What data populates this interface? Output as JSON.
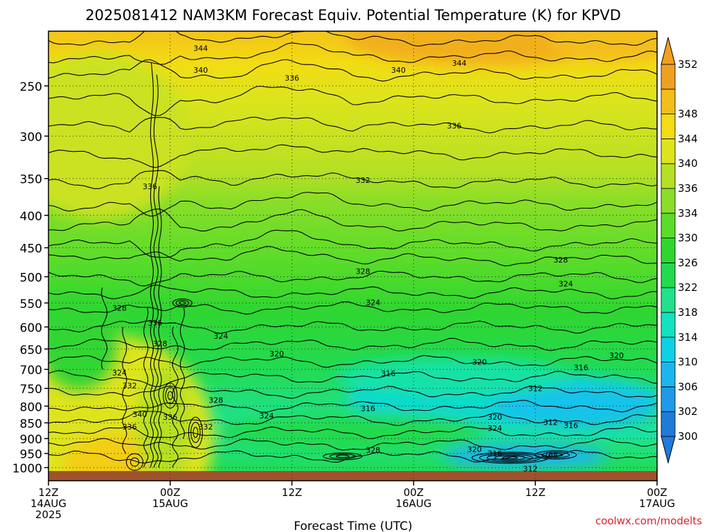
{
  "chart_data": {
    "type": "heatmap",
    "title": "2025081412 NAM3KM Forecast Equiv. Potential Temperature (K) for KPVD",
    "xlabel": "Forecast Time (UTC)",
    "ylabel": "",
    "x_ticks": [
      {
        "hour": 0,
        "lines": [
          "12Z",
          "14AUG",
          "2025"
        ]
      },
      {
        "hour": 12,
        "lines": [
          "00Z",
          "15AUG"
        ]
      },
      {
        "hour": 24,
        "lines": [
          "12Z"
        ]
      },
      {
        "hour": 36,
        "lines": [
          "00Z",
          "16AUG"
        ]
      },
      {
        "hour": 48,
        "lines": [
          "12Z"
        ]
      },
      {
        "hour": 60,
        "lines": [
          "00Z",
          "17AUG"
        ]
      }
    ],
    "xlim": [
      0,
      60
    ],
    "y_ticks": [
      250,
      300,
      350,
      400,
      450,
      500,
      550,
      600,
      650,
      700,
      750,
      800,
      850,
      900,
      950,
      1000
    ],
    "ylim": [
      1020,
      200
    ],
    "y_scale": "log-pressure",
    "grid": true,
    "colorbar": {
      "levels": [
        300,
        302,
        306,
        310,
        314,
        318,
        322,
        326,
        330,
        334,
        336,
        340,
        344,
        348,
        352
      ],
      "colors": [
        "#1e7bd8",
        "#1e9ae8",
        "#1cb6ee",
        "#10d0e6",
        "#12e2c0",
        "#20e28c",
        "#22da50",
        "#30d630",
        "#5cdc2a",
        "#8ade28",
        "#b6e024",
        "#dee41c",
        "#f2dc14",
        "#f4be1a",
        "#f0a020"
      ],
      "labels": [
        "300",
        "302",
        "306",
        "310",
        "314",
        "318",
        "322",
        "326",
        "330",
        "334",
        "336",
        "340",
        "344",
        "348",
        "352"
      ]
    },
    "contour_labels": [
      {
        "text": "344",
        "hour": 15.0,
        "p": 218
      },
      {
        "text": "344",
        "hour": 40.5,
        "p": 230
      },
      {
        "text": "340",
        "hour": 15.0,
        "p": 236
      },
      {
        "text": "340",
        "hour": 34.5,
        "p": 236
      },
      {
        "text": "336",
        "hour": 24.0,
        "p": 243
      },
      {
        "text": "336",
        "hour": 40.0,
        "p": 289
      },
      {
        "text": "336",
        "hour": 10.0,
        "p": 360
      },
      {
        "text": "332",
        "hour": 31.0,
        "p": 352
      },
      {
        "text": "328",
        "hour": 31.0,
        "p": 490
      },
      {
        "text": "328",
        "hour": 50.5,
        "p": 470
      },
      {
        "text": "328",
        "hour": 7.0,
        "p": 560
      },
      {
        "text": "324",
        "hour": 32.0,
        "p": 549
      },
      {
        "text": "324",
        "hour": 51.0,
        "p": 513
      },
      {
        "text": "324",
        "hour": 17.0,
        "p": 620
      },
      {
        "text": "324",
        "hour": 7.0,
        "p": 708
      },
      {
        "text": "336",
        "hour": 10.5,
        "p": 591
      },
      {
        "text": "328",
        "hour": 11.0,
        "p": 637
      },
      {
        "text": "320",
        "hour": 22.5,
        "p": 661
      },
      {
        "text": "320",
        "hour": 42.5,
        "p": 681
      },
      {
        "text": "320",
        "hour": 56.0,
        "p": 665
      },
      {
        "text": "316",
        "hour": 33.5,
        "p": 710
      },
      {
        "text": "316",
        "hour": 52.5,
        "p": 695
      },
      {
        "text": "312",
        "hour": 48.0,
        "p": 750
      },
      {
        "text": "332",
        "hour": 8.0,
        "p": 742
      },
      {
        "text": "328",
        "hour": 16.5,
        "p": 782
      },
      {
        "text": "316",
        "hour": 31.5,
        "p": 806
      },
      {
        "text": "340",
        "hour": 9.0,
        "p": 824
      },
      {
        "text": "336",
        "hour": 12.0,
        "p": 832
      },
      {
        "text": "324",
        "hour": 21.5,
        "p": 828
      },
      {
        "text": "336",
        "hour": 8.0,
        "p": 862
      },
      {
        "text": "332",
        "hour": 15.5,
        "p": 862
      },
      {
        "text": "320",
        "hour": 44.0,
        "p": 832
      },
      {
        "text": "312",
        "hour": 49.5,
        "p": 848
      },
      {
        "text": "316",
        "hour": 51.5,
        "p": 858
      },
      {
        "text": "324",
        "hour": 44.0,
        "p": 866
      },
      {
        "text": "328",
        "hour": 32.0,
        "p": 938
      },
      {
        "text": "320",
        "hour": 42.0,
        "p": 936
      },
      {
        "text": "316",
        "hour": 44.0,
        "p": 950
      },
      {
        "text": "308",
        "hour": 49.5,
        "p": 957
      },
      {
        "text": "312",
        "hour": 47.5,
        "p": 1004
      }
    ]
  },
  "credit": "coolwx.com/modelts"
}
